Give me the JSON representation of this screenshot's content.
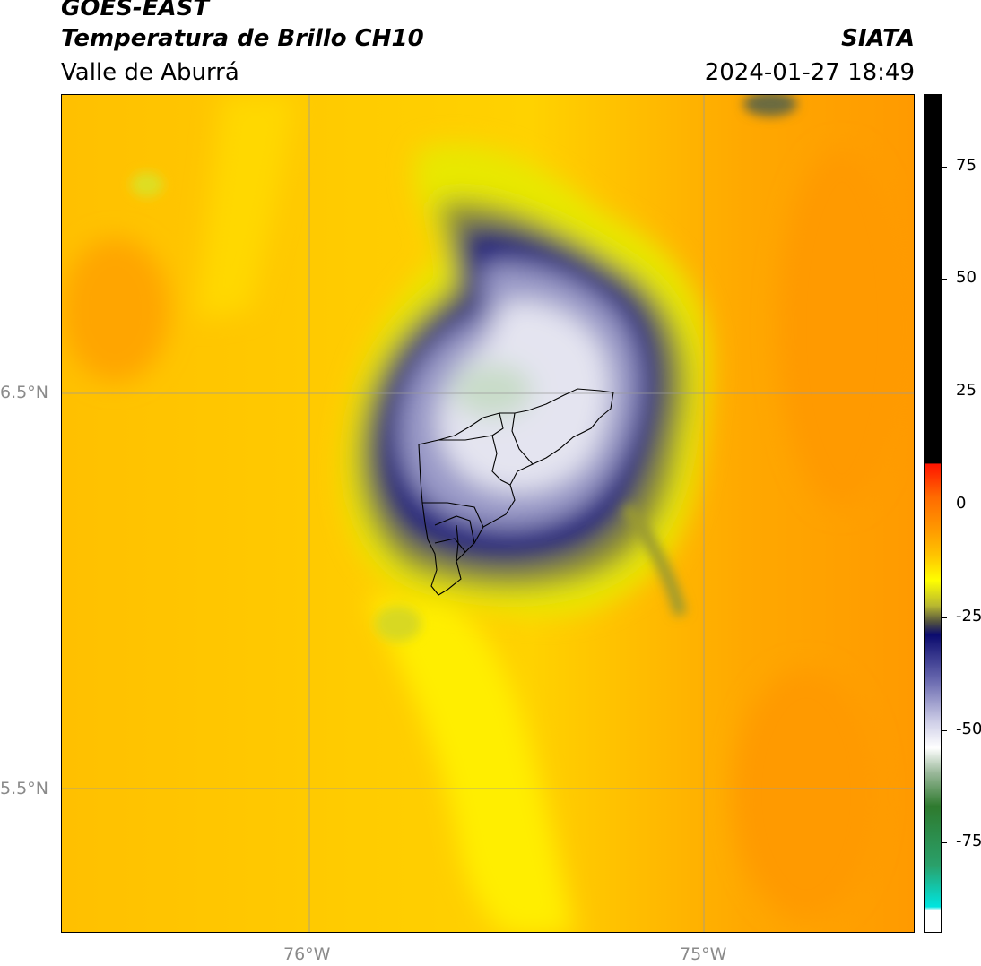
{
  "header": {
    "title": "GOES-EAST",
    "subtitle": "Temperatura de Brillo CH10",
    "region": "Valle de Aburrá",
    "organization": "SIATA",
    "timestamp": "2024-01-27 18:49"
  },
  "axes": {
    "lat_labels": [
      "6.5°N",
      "5.5°N"
    ],
    "lon_labels": [
      "76°W",
      "75°W"
    ]
  },
  "colorbar": {
    "ticks": [
      "75",
      "50",
      "25",
      "0",
      "-25",
      "-50",
      "-75"
    ],
    "tick_values": [
      75,
      50,
      25,
      0,
      -25,
      -50,
      -75
    ],
    "range": [
      -95,
      91
    ],
    "colors": {
      "cold_cyan": "#00e5e0",
      "green": "#3a8a3a",
      "white": "#ffffff",
      "blue_gray": "#8888c0",
      "navy": "#0b0b6e",
      "olive": "#9a9a2a",
      "yellow": "#ffff00",
      "orange": "#ff9400",
      "red": "#ff1400",
      "black": "#000000"
    }
  }
}
